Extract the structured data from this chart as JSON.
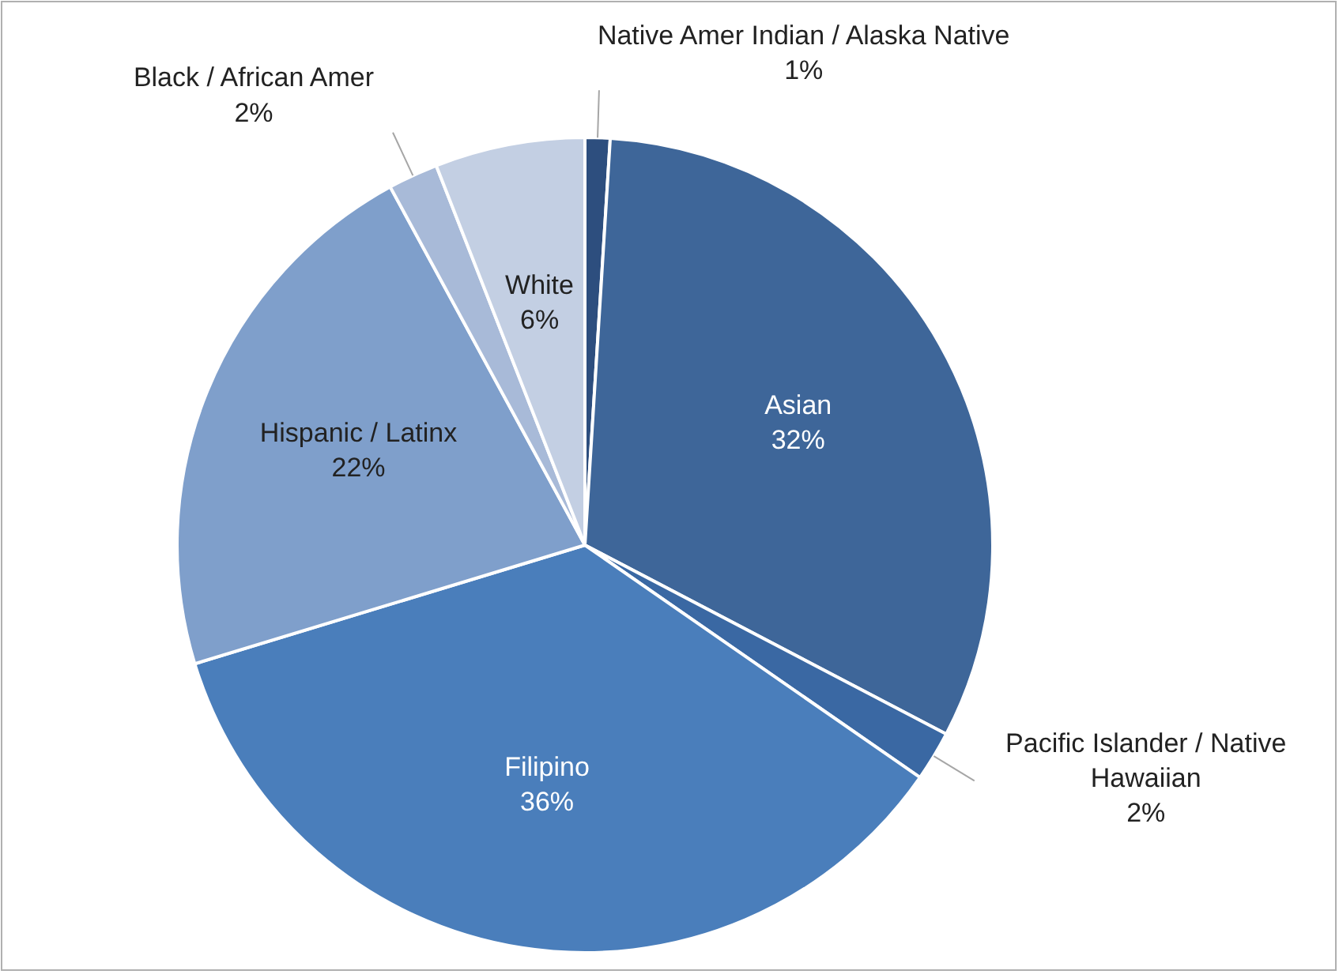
{
  "chart_data": {
    "type": "pie",
    "categories": [
      "Native Amer Indian / Alaska Native",
      "Asian",
      "Pacific Islander / Native Hawaiian",
      "Filipino",
      "Hispanic / Latinx",
      "Black / African Amer",
      "White"
    ],
    "values": [
      1,
      32,
      2,
      36,
      22,
      2,
      6
    ],
    "value_labels": [
      "1%",
      "32%",
      "2%",
      "36%",
      "22%",
      "2%",
      "6%"
    ],
    "colors": [
      "#2d4e7e",
      "#3e6699",
      "#3a68a3",
      "#4a7ebb",
      "#7f9fcb",
      "#a8bad8",
      "#c3cfe3"
    ]
  }
}
